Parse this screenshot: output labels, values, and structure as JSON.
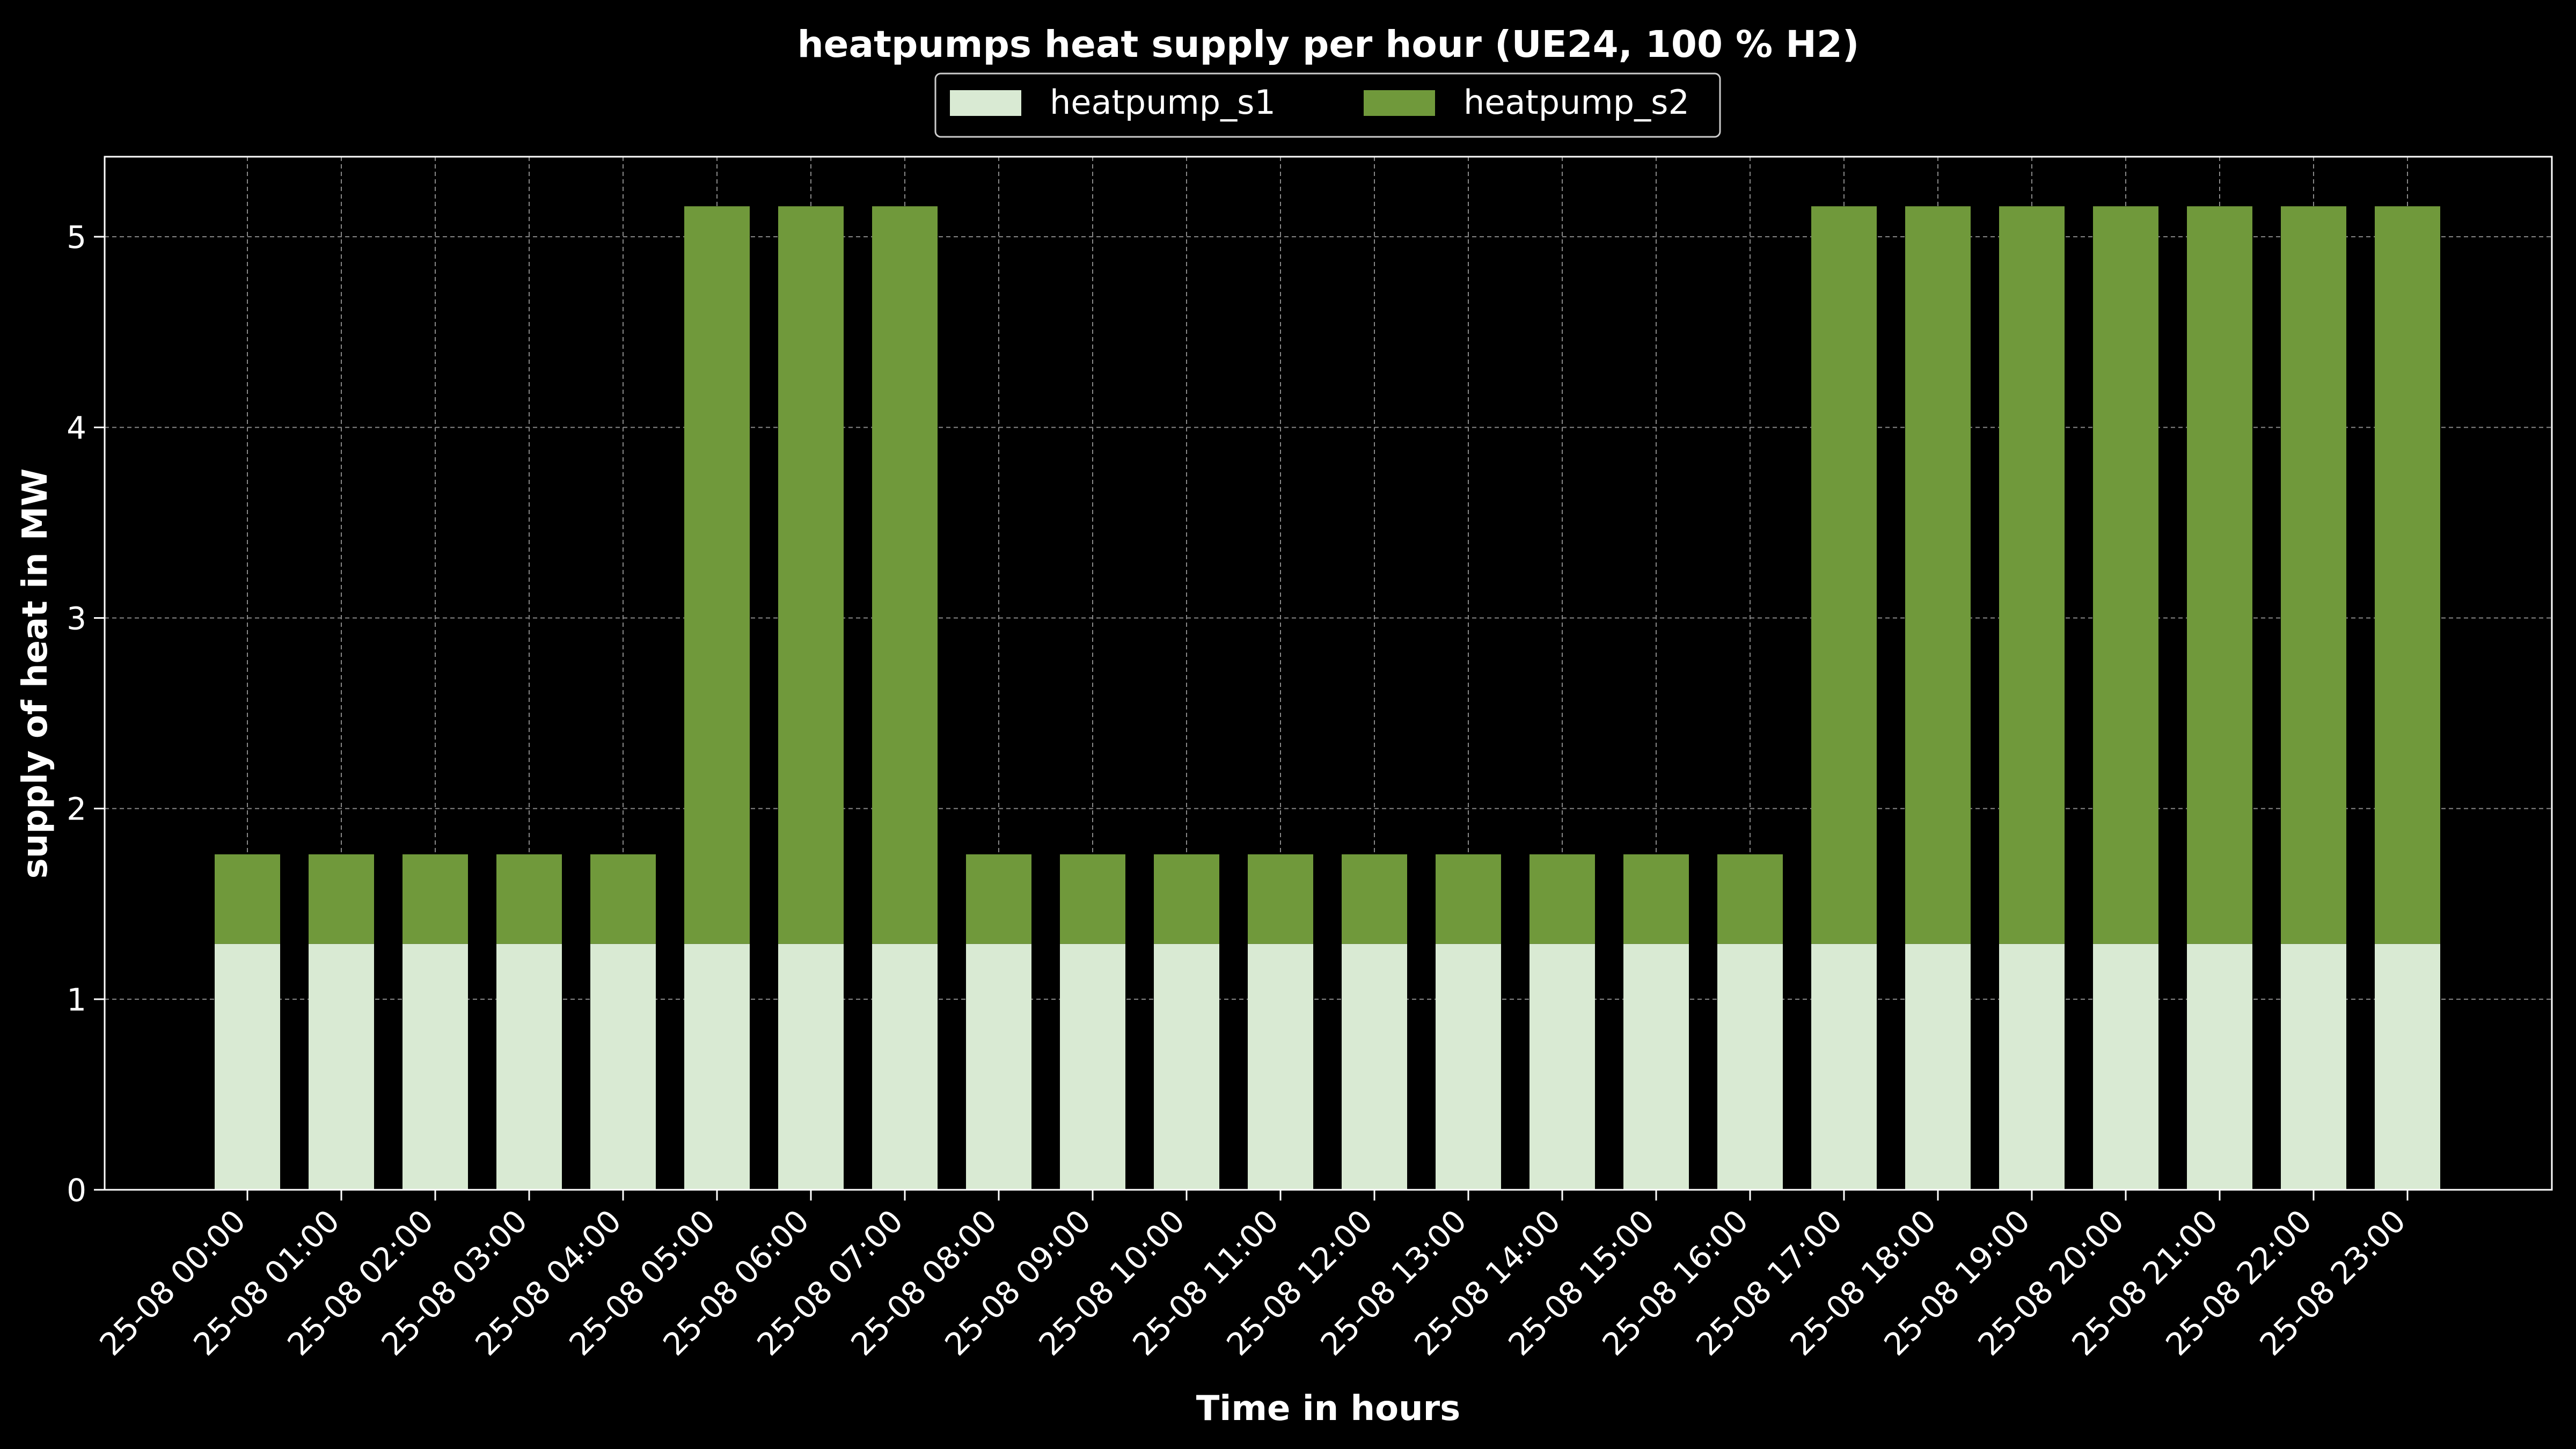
{
  "chart_data": {
    "type": "bar",
    "stacked": true,
    "title": "heatpumps heat supply per hour (UE24, 100 % H2)",
    "xlabel": "Time in hours",
    "ylabel": "supply of heat in MW",
    "ylim": [
      0,
      5.42
    ],
    "yticks": [
      0,
      1,
      2,
      3,
      4,
      5
    ],
    "grid": true,
    "legend_position": "top-center",
    "categories": [
      "25-08 00:00",
      "25-08 01:00",
      "25-08 02:00",
      "25-08 03:00",
      "25-08 04:00",
      "25-08 05:00",
      "25-08 06:00",
      "25-08 07:00",
      "25-08 08:00",
      "25-08 09:00",
      "25-08 10:00",
      "25-08 11:00",
      "25-08 12:00",
      "25-08 13:00",
      "25-08 14:00",
      "25-08 15:00",
      "25-08 16:00",
      "25-08 17:00",
      "25-08 18:00",
      "25-08 19:00",
      "25-08 20:00",
      "25-08 21:00",
      "25-08 22:00",
      "25-08 23:00"
    ],
    "series": [
      {
        "name": "heatpump_s1",
        "color": "#d9ead3",
        "values": [
          1.29,
          1.29,
          1.29,
          1.29,
          1.29,
          1.29,
          1.29,
          1.29,
          1.29,
          1.29,
          1.29,
          1.29,
          1.29,
          1.29,
          1.29,
          1.29,
          1.29,
          1.29,
          1.29,
          1.29,
          1.29,
          1.29,
          1.29,
          1.29
        ]
      },
      {
        "name": "heatpump_s2",
        "color": "#70993b",
        "values": [
          0.47,
          0.47,
          0.47,
          0.47,
          0.47,
          3.87,
          3.87,
          3.87,
          0.47,
          0.47,
          0.47,
          0.47,
          0.47,
          0.47,
          0.47,
          0.47,
          0.47,
          3.87,
          3.87,
          3.87,
          3.87,
          3.87,
          3.87,
          3.87
        ]
      }
    ]
  }
}
